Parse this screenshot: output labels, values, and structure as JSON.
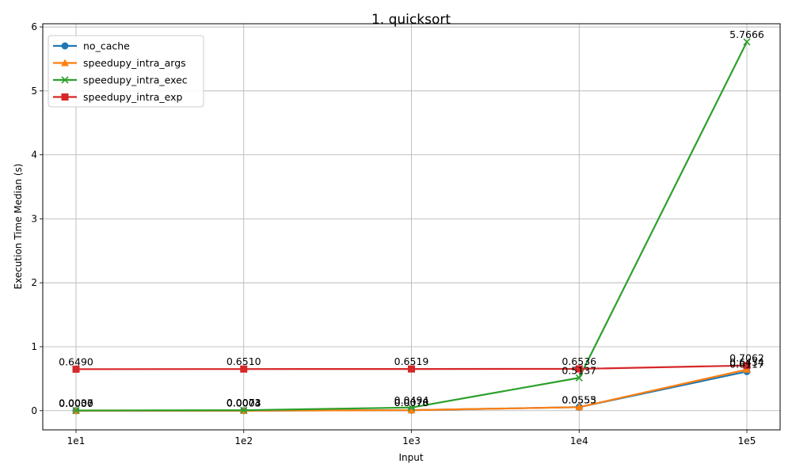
{
  "chart_data": {
    "type": "line",
    "title": "1. quicksort",
    "xlabel": "Input",
    "ylabel": "Execution Time Median (s)",
    "categories": [
      "1e1",
      "1e2",
      "1e3",
      "1e4",
      "1e5"
    ],
    "ylim": [
      -0.3,
      6.05
    ],
    "yticks": [
      0,
      1,
      2,
      3,
      4,
      5,
      6
    ],
    "grid": true,
    "legend_position": "top-left",
    "series": [
      {
        "name": "no_cache",
        "color": "#1f77b4",
        "marker": "circle",
        "values": [
          0.0,
          0.0003,
          0.0076,
          0.0555,
          0.6117
        ],
        "labels": [
          "0.0000",
          "0.0003",
          "0.0076",
          "0.0555",
          "0.6117"
        ]
      },
      {
        "name": "speedupy_intra_args",
        "color": "#ff7f0e",
        "marker": "triangle",
        "values": [
          0.0006,
          0.0004,
          0.0078,
          0.0553,
          0.6434
        ],
        "labels": [
          "0.0006",
          "0.0004",
          "0.0078",
          "0.0553",
          "0.6434"
        ]
      },
      {
        "name": "speedupy_intra_exec",
        "color": "#2ca02c",
        "marker": "x",
        "values": [
          0.0037,
          0.0073,
          0.0494,
          0.5137,
          5.7666
        ],
        "labels": [
          "0.0037",
          "0.0073",
          "0.0494",
          "0.5137",
          "5.7666"
        ]
      },
      {
        "name": "speedupy_intra_exp",
        "color": "#d62728",
        "marker": "square",
        "values": [
          0.649,
          0.651,
          0.6519,
          0.6536,
          0.7062
        ],
        "labels": [
          "0.6490",
          "0.6510",
          "0.6519",
          "0.6536",
          "0.7062"
        ]
      }
    ]
  }
}
